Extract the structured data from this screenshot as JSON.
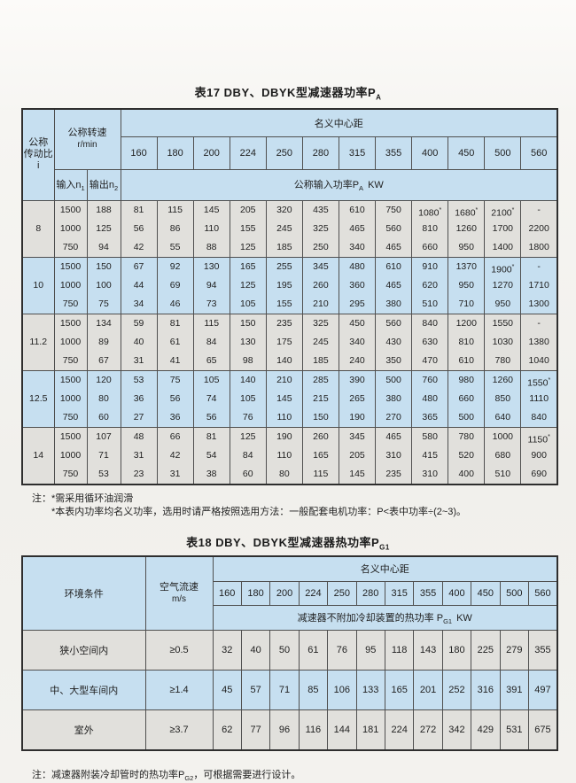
{
  "colors": {
    "header_blue": "#c6dff0",
    "row_gray": "#e1e0dc",
    "row_blue": "#c6dff0",
    "border": "#4f4f4f",
    "page_bg": "#f3f2ee"
  },
  "table17": {
    "title_main": "表17 DBY、DBYK型减速器功率P",
    "title_sub": "A",
    "header": {
      "ratio_label_1": "公称",
      "ratio_label_2": "传动比i",
      "speed_label": "公称转速",
      "speed_unit": "r/min",
      "input_label": "输入n",
      "input_sub": "1",
      "output_label": "输出n",
      "output_sub": "2",
      "center_distance_label": "名义中心距",
      "power_label": "公称输入功率P",
      "power_sub": "A",
      "power_unit": "KW",
      "distances": [
        "160",
        "180",
        "200",
        "224",
        "250",
        "280",
        "315",
        "355",
        "400",
        "450",
        "500",
        "560"
      ]
    },
    "groups": [
      {
        "ratio": "8",
        "rows": [
          {
            "n1": "1500",
            "n2": "188",
            "values": [
              "81",
              "115",
              "145",
              "205",
              "320",
              "435",
              "610",
              "750",
              "1080*",
              "1680*",
              "2100*",
              "-"
            ]
          },
          {
            "n1": "1000",
            "n2": "125",
            "values": [
              "56",
              "86",
              "110",
              "155",
              "245",
              "325",
              "465",
              "560",
              "810",
              "1260",
              "1700",
              "2200"
            ]
          },
          {
            "n1": "750",
            "n2": "94",
            "values": [
              "42",
              "55",
              "88",
              "125",
              "185",
              "250",
              "340",
              "465",
              "660",
              "950",
              "1400",
              "1800"
            ]
          }
        ]
      },
      {
        "ratio": "10",
        "rows": [
          {
            "n1": "1500",
            "n2": "150",
            "values": [
              "67",
              "92",
              "130",
              "165",
              "255",
              "345",
              "480",
              "610",
              "910",
              "1370",
              "1900*",
              "-"
            ]
          },
          {
            "n1": "1000",
            "n2": "100",
            "values": [
              "44",
              "69",
              "94",
              "125",
              "195",
              "260",
              "360",
              "465",
              "620",
              "950",
              "1270",
              "1710"
            ]
          },
          {
            "n1": "750",
            "n2": "75",
            "values": [
              "34",
              "46",
              "73",
              "105",
              "155",
              "210",
              "295",
              "380",
              "510",
              "710",
              "950",
              "1300"
            ]
          }
        ]
      },
      {
        "ratio": "11.2",
        "rows": [
          {
            "n1": "1500",
            "n2": "134",
            "values": [
              "59",
              "81",
              "115",
              "150",
              "235",
              "325",
              "450",
              "560",
              "840",
              "1200",
              "1550",
              "-"
            ]
          },
          {
            "n1": "1000",
            "n2": "89",
            "values": [
              "40",
              "61",
              "84",
              "130",
              "175",
              "245",
              "340",
              "430",
              "630",
              "810",
              "1030",
              "1380"
            ]
          },
          {
            "n1": "750",
            "n2": "67",
            "values": [
              "31",
              "41",
              "65",
              "98",
              "140",
              "185",
              "240",
              "350",
              "470",
              "610",
              "780",
              "1040"
            ]
          }
        ]
      },
      {
        "ratio": "12.5",
        "rows": [
          {
            "n1": "1500",
            "n2": "120",
            "values": [
              "53",
              "75",
              "105",
              "140",
              "210",
              "285",
              "390",
              "500",
              "760",
              "980",
              "1260",
              "1550*"
            ]
          },
          {
            "n1": "1000",
            "n2": "80",
            "values": [
              "36",
              "56",
              "74",
              "105",
              "145",
              "215",
              "265",
              "380",
              "480",
              "660",
              "850",
              "1110"
            ]
          },
          {
            "n1": "750",
            "n2": "60",
            "values": [
              "27",
              "36",
              "56",
              "76",
              "110",
              "150",
              "190",
              "270",
              "365",
              "500",
              "640",
              "840"
            ]
          }
        ]
      },
      {
        "ratio": "14",
        "rows": [
          {
            "n1": "1500",
            "n2": "107",
            "values": [
              "48",
              "66",
              "81",
              "125",
              "190",
              "260",
              "345",
              "465",
              "580",
              "780",
              "1000",
              "1150*"
            ]
          },
          {
            "n1": "1000",
            "n2": "71",
            "values": [
              "31",
              "42",
              "54",
              "84",
              "110",
              "165",
              "205",
              "310",
              "415",
              "520",
              "680",
              "900"
            ]
          },
          {
            "n1": "750",
            "n2": "53",
            "values": [
              "23",
              "31",
              "38",
              "60",
              "80",
              "115",
              "145",
              "235",
              "310",
              "400",
              "510",
              "690"
            ]
          }
        ]
      }
    ]
  },
  "notes17": {
    "prefix": "注：",
    "line1": "*需采用循环油润滑",
    "line2": "*本表内功率均名义功率，选用时请严格按照选用方法：一般配套电机功率：P<表中功率÷(2~3)。"
  },
  "table18": {
    "title_main": "表18 DBY、DBYK型减速器热功率P",
    "title_sub": "G1",
    "header": {
      "env_label": "环境条件",
      "air_label": "空气流速",
      "air_unit": "m/s",
      "center_distance_label": "名义中心距",
      "power_label": "减速器不附加冷却装置的热功率 P",
      "power_sub": "G1",
      "power_unit": "KW",
      "distances": [
        "160",
        "180",
        "200",
        "224",
        "250",
        "280",
        "315",
        "355",
        "400",
        "450",
        "500",
        "560"
      ]
    },
    "rows": [
      {
        "env": "狭小空间内",
        "air": "≥0.5",
        "values": [
          "32",
          "40",
          "50",
          "61",
          "76",
          "95",
          "118",
          "143",
          "180",
          "225",
          "279",
          "355"
        ]
      },
      {
        "env": "中、大型车间内",
        "air": "≥1.4",
        "values": [
          "45",
          "57",
          "71",
          "85",
          "106",
          "133",
          "165",
          "201",
          "252",
          "316",
          "391",
          "497"
        ]
      },
      {
        "env": "室外",
        "air": "≥3.7",
        "values": [
          "62",
          "77",
          "96",
          "116",
          "144",
          "181",
          "224",
          "272",
          "342",
          "429",
          "531",
          "675"
        ]
      }
    ]
  },
  "note18": {
    "prefix": "注：",
    "pre": "减速器附装冷却管时的热功率P",
    "sub": "G2",
    "post": "，可根据需要进行设计。"
  }
}
